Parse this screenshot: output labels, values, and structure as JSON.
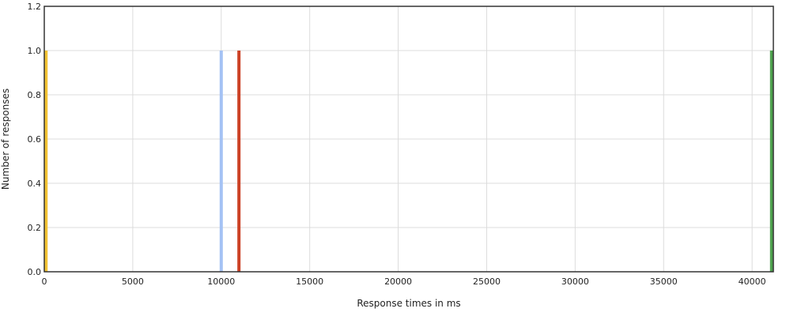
{
  "chart_data": {
    "type": "bar",
    "xlabel": "Response times in ms",
    "ylabel": "Number of responses",
    "xlim": [
      0,
      41200
    ],
    "ylim": [
      0,
      1.2
    ],
    "x_ticks": [
      0,
      5000,
      10000,
      15000,
      20000,
      25000,
      30000,
      35000,
      40000
    ],
    "y_ticks": [
      "0.0",
      "0.2",
      "0.4",
      "0.6",
      "0.8",
      "1.0",
      "1.2"
    ],
    "grid": true,
    "legend": "none",
    "series": [
      {
        "x": [
          100
        ],
        "values": [
          1
        ],
        "color": "#f1c232"
      },
      {
        "x": [
          10000
        ],
        "values": [
          1
        ],
        "color": "#a4c2f4"
      },
      {
        "x": [
          11000
        ],
        "values": [
          1
        ],
        "color": "#cc4125"
      },
      {
        "x": [
          41100
        ],
        "values": [
          1
        ],
        "color": "#4ea24e"
      }
    ]
  }
}
